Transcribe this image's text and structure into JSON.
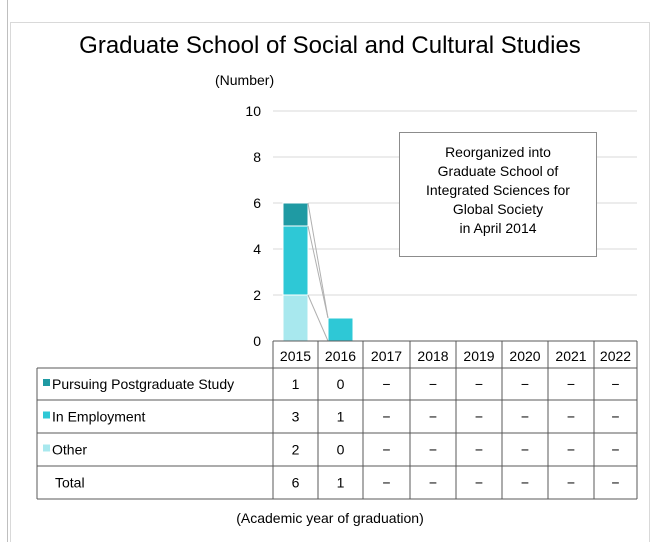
{
  "chart_data": {
    "type": "bar",
    "stacked": true,
    "title": "Graduate School of Social and Cultural Studies",
    "ylabel": "(Number)",
    "xlabel": "(Academic year of graduation)",
    "ylim": [
      0,
      10
    ],
    "yticks": [
      "0",
      "2",
      "4",
      "6",
      "8",
      "10"
    ],
    "grid": true,
    "categories": [
      "2015",
      "2016",
      "2017",
      "2018",
      "2019",
      "2020",
      "2021",
      "2022"
    ],
    "series": [
      {
        "name": "Other",
        "color": "#a8e8ee",
        "values": [
          2,
          0,
          null,
          null,
          null,
          null,
          null,
          null
        ]
      },
      {
        "name": "In Employment",
        "color": "#2ec8d6",
        "values": [
          3,
          1,
          null,
          null,
          null,
          null,
          null,
          null
        ]
      },
      {
        "name": "Pursuing Postgraduate Study",
        "color": "#1f9aa3",
        "values": [
          1,
          0,
          null,
          null,
          null,
          null,
          null,
          null
        ]
      }
    ],
    "table": {
      "rows": [
        {
          "label": "Pursuing Postgraduate Study",
          "color": "#1f9aa3",
          "cells": [
            "1",
            "0",
            "−",
            "−",
            "−",
            "−",
            "−",
            "−"
          ]
        },
        {
          "label": "In Employment",
          "color": "#2ec8d6",
          "cells": [
            "3",
            "1",
            "−",
            "−",
            "−",
            "−",
            "−",
            "−"
          ]
        },
        {
          "label": "Other",
          "color": "#a8e8ee",
          "cells": [
            "2",
            "0",
            "−",
            "−",
            "−",
            "−",
            "−",
            "−"
          ]
        },
        {
          "label": "Total",
          "color": "",
          "cells": [
            "6",
            "1",
            "−",
            "−",
            "−",
            "−",
            "−",
            "−"
          ]
        }
      ]
    },
    "annotation": [
      "Reorganized into",
      "Graduate School of",
      "Integrated Sciences for",
      "Global Society",
      "in April 2014"
    ]
  }
}
